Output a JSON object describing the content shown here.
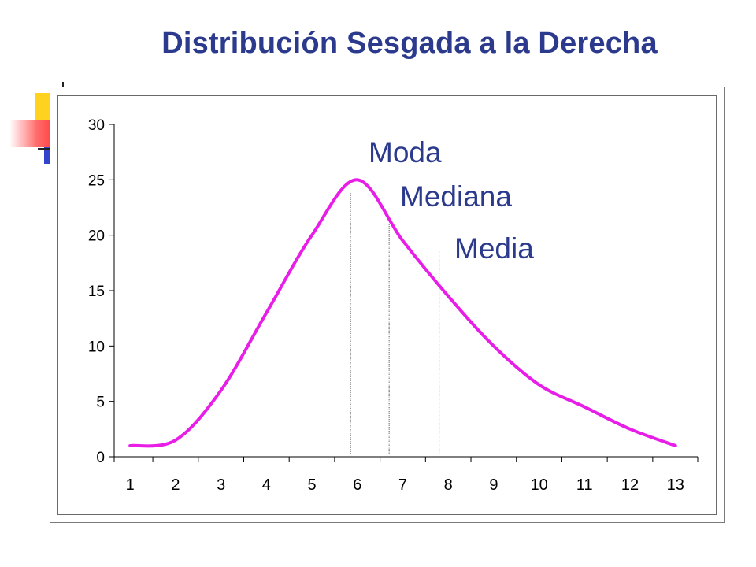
{
  "slide": {
    "title": "Distribución Sesgada a la Derecha"
  },
  "chart_data": {
    "type": "line",
    "title": "",
    "xlabel": "",
    "ylabel": "",
    "x": [
      1,
      2,
      3,
      4,
      5,
      6,
      7,
      8,
      9,
      10,
      11,
      12,
      13
    ],
    "categories": [
      "1",
      "2",
      "3",
      "4",
      "5",
      "6",
      "7",
      "8",
      "9",
      "10",
      "11",
      "12",
      "13"
    ],
    "ylim": [
      0,
      30
    ],
    "yticks": [
      0,
      5,
      10,
      15,
      20,
      25,
      30
    ],
    "ytick_labels": [
      "0",
      "5",
      "10",
      "15",
      "20",
      "25",
      "30"
    ],
    "grid": false,
    "legend": "none",
    "series": [
      {
        "color": "#e81ee8",
        "smooth": true,
        "values": [
          1,
          1.5,
          6,
          13,
          20,
          25,
          19.5,
          14.5,
          10,
          6.5,
          4.5,
          2.5,
          1
        ]
      }
    ],
    "annotations": [
      {
        "label": "Moda",
        "x": 5.85,
        "line_top": 23.8,
        "color": "#2b3a8c"
      },
      {
        "label": "Mediana",
        "x": 6.7,
        "line_top": 21,
        "color": "#2b3a8c"
      },
      {
        "label": "Media",
        "x": 7.8,
        "line_top": 18.7,
        "color": "#2b3a8c"
      }
    ]
  }
}
